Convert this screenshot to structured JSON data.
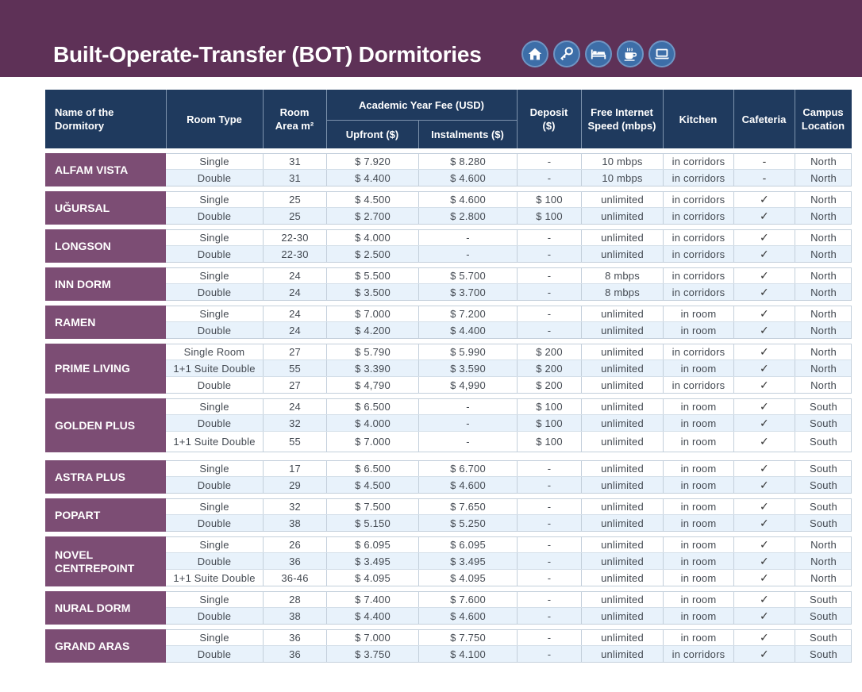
{
  "page": {
    "title": "Built-Operate-Transfer (BOT) Dormitories",
    "icons": [
      "house-icon",
      "key-icon",
      "bed-icon",
      "coffee-cup-icon",
      "laptop-icon"
    ]
  },
  "colors": {
    "banner": "#5e3157",
    "header": "#1f3a5e",
    "dorm_name_bg": "#7c4d74",
    "icon_bg": "#3d6ea8",
    "row_alt": "#e8f2fb"
  },
  "headers": {
    "name": "Name of  the Dormitory",
    "room_type": "Room Type",
    "room_area": "Room Area m²",
    "fee_group": "Academic Year Fee (USD)",
    "upfront": "Upfront ($)",
    "instalments": "Instalments ($)",
    "deposit": "Deposit ($)",
    "internet": "Free Internet Speed (mbps)",
    "kitchen": "Kitchen",
    "cafeteria": "Cafeteria",
    "location": "Campus Location"
  },
  "dormitories": [
    {
      "name": "ALFAM VISTA",
      "rows": [
        {
          "type": "Single",
          "area": "31",
          "upfront": "$ 7.920",
          "instal": "$ 8.280",
          "deposit": "-",
          "internet": "10 mbps",
          "kitchen": "in corridors",
          "cafeteria": "-",
          "location": "North"
        },
        {
          "type": "Double",
          "area": "31",
          "upfront": "$ 4.400",
          "instal": "$ 4.600",
          "deposit": "-",
          "internet": "10 mbps",
          "kitchen": "in corridors",
          "cafeteria": "-",
          "location": "North"
        }
      ]
    },
    {
      "name": "UĞURSAL",
      "rows": [
        {
          "type": "Single",
          "area": "25",
          "upfront": "$ 4.500",
          "instal": "$ 4.600",
          "deposit": "$ 100",
          "internet": "unlimited",
          "kitchen": "in corridors",
          "cafeteria": "✓",
          "location": "North"
        },
        {
          "type": "Double",
          "area": "25",
          "upfront": "$ 2.700",
          "instal": "$ 2.800",
          "deposit": "$ 100",
          "internet": "unlimited",
          "kitchen": "in corridors",
          "cafeteria": "✓",
          "location": "North"
        }
      ]
    },
    {
      "name": "LONGSON",
      "rows": [
        {
          "type": "Single",
          "area": "22-30",
          "upfront": "$ 4.000",
          "instal": "-",
          "deposit": "-",
          "internet": "unlimited",
          "kitchen": "in corridors",
          "cafeteria": "✓",
          "location": "North"
        },
        {
          "type": "Double",
          "area": "22-30",
          "upfront": "$ 2.500",
          "instal": "-",
          "deposit": "-",
          "internet": "unlimited",
          "kitchen": "in corridors",
          "cafeteria": "✓",
          "location": "North"
        }
      ]
    },
    {
      "name": "INN DORM",
      "rows": [
        {
          "type": "Single",
          "area": "24",
          "upfront": "$ 5.500",
          "instal": "$ 5.700",
          "deposit": "-",
          "internet": "8 mbps",
          "kitchen": "in corridors",
          "cafeteria": "✓",
          "location": "North"
        },
        {
          "type": "Double",
          "area": "24",
          "upfront": "$ 3.500",
          "instal": "$ 3.700",
          "deposit": "-",
          "internet": "8 mbps",
          "kitchen": "in corridors",
          "cafeteria": "✓",
          "location": "North"
        }
      ]
    },
    {
      "name": "RAMEN",
      "rows": [
        {
          "type": "Single",
          "area": "24",
          "upfront": "$ 7.000",
          "instal": "$ 7.200",
          "deposit": "-",
          "internet": "unlimited",
          "kitchen": "in room",
          "cafeteria": "✓",
          "location": "North"
        },
        {
          "type": "Double",
          "area": "24",
          "upfront": "$ 4.200",
          "instal": "$ 4.400",
          "deposit": "-",
          "internet": "unlimited",
          "kitchen": "in room",
          "cafeteria": "✓",
          "location": "North"
        }
      ]
    },
    {
      "name": "PRIME LIVING",
      "rows": [
        {
          "type": "Single Room",
          "area": "27",
          "upfront": "$ 5.790",
          "instal": "$ 5.990",
          "deposit": "$ 200",
          "internet": "unlimited",
          "kitchen": "in corridors",
          "cafeteria": "✓",
          "location": "North"
        },
        {
          "type": "1+1 Suite Double",
          "area": "55",
          "upfront": "$ 3.390",
          "instal": "$ 3.590",
          "deposit": "$ 200",
          "internet": "unlimited",
          "kitchen": "in room",
          "cafeteria": "✓",
          "location": "North"
        },
        {
          "type": "Double",
          "area": "27",
          "upfront": "$ 4,790",
          "instal": "$ 4,990",
          "deposit": "$ 200",
          "internet": "unlimited",
          "kitchen": "in corridors",
          "cafeteria": "✓",
          "location": "North"
        }
      ]
    },
    {
      "name": "GOLDEN PLUS",
      "rows": [
        {
          "type": "Single",
          "area": "24",
          "upfront": "$ 6.500",
          "instal": "-",
          "deposit": "$ 100",
          "internet": "unlimited",
          "kitchen": "in room",
          "cafeteria": "✓",
          "location": "South"
        },
        {
          "type": "Double",
          "area": "32",
          "upfront": "$ 4.000",
          "instal": "-",
          "deposit": "$ 100",
          "internet": "unlimited",
          "kitchen": "in room",
          "cafeteria": "✓",
          "location": "South"
        },
        {
          "type": "1+1 Suite Double",
          "area": "55",
          "upfront": "$ 7.000",
          "instal": "-",
          "deposit": "$ 100",
          "internet": "unlimited",
          "kitchen": "in room",
          "cafeteria": "✓",
          "location": "South"
        }
      ]
    },
    {
      "name": "ASTRA PLUS",
      "rows": [
        {
          "type": "Single",
          "area": "17",
          "upfront": "$ 6.500",
          "instal": "$ 6.700",
          "deposit": "-",
          "internet": "unlimited",
          "kitchen": "in room",
          "cafeteria": "✓",
          "location": "South"
        },
        {
          "type": "Double",
          "area": "29",
          "upfront": "$ 4.500",
          "instal": "$ 4.600",
          "deposit": "-",
          "internet": "unlimited",
          "kitchen": "in room",
          "cafeteria": "✓",
          "location": "South"
        }
      ]
    },
    {
      "name": "POPART",
      "rows": [
        {
          "type": "Single",
          "area": "32",
          "upfront": "$ 7.500",
          "instal": "$ 7.650",
          "deposit": "-",
          "internet": "unlimited",
          "kitchen": "in room",
          "cafeteria": "✓",
          "location": "South"
        },
        {
          "type": "Double",
          "area": "38",
          "upfront": "$ 5.150",
          "instal": "$ 5.250",
          "deposit": "-",
          "internet": "unlimited",
          "kitchen": "in room",
          "cafeteria": "✓",
          "location": "South"
        }
      ]
    },
    {
      "name": "NOVEL CENTREPOINT",
      "rows": [
        {
          "type": "Single",
          "area": "26",
          "upfront": "$ 6.095",
          "instal": "$ 6.095",
          "deposit": "-",
          "internet": "unlimited",
          "kitchen": "in room",
          "cafeteria": "✓",
          "location": "North"
        },
        {
          "type": "Double",
          "area": "36",
          "upfront": "$ 3.495",
          "instal": "$ 3.495",
          "deposit": "-",
          "internet": "unlimited",
          "kitchen": "in room",
          "cafeteria": "✓",
          "location": "North"
        },
        {
          "type": "1+1 Suite Double",
          "area": "36-46",
          "upfront": "$ 4.095",
          "instal": "$ 4.095",
          "deposit": "-",
          "internet": "unlimited",
          "kitchen": "in room",
          "cafeteria": "✓",
          "location": "North"
        }
      ]
    },
    {
      "name": "NURAL DORM",
      "rows": [
        {
          "type": "Single",
          "area": "28",
          "upfront": "$ 7.400",
          "instal": "$ 7.600",
          "deposit": "-",
          "internet": "unlimited",
          "kitchen": "in room",
          "cafeteria": "✓",
          "location": "South"
        },
        {
          "type": "Double",
          "area": "38",
          "upfront": "$ 4.400",
          "instal": "$ 4.600",
          "deposit": "-",
          "internet": "unlimited",
          "kitchen": "in room",
          "cafeteria": "✓",
          "location": "South"
        }
      ]
    },
    {
      "name": "GRAND ARAS",
      "rows": [
        {
          "type": "Single",
          "area": "36",
          "upfront": "$ 7.000",
          "instal": "$ 7.750",
          "deposit": "-",
          "internet": "unlimited",
          "kitchen": "in room",
          "cafeteria": "✓",
          "location": "South"
        },
        {
          "type": "Double",
          "area": "36",
          "upfront": "$ 3.750",
          "instal": "$ 4.100",
          "deposit": "-",
          "internet": "unlimited",
          "kitchen": "in corridors",
          "cafeteria": "✓",
          "location": "South"
        }
      ]
    }
  ]
}
